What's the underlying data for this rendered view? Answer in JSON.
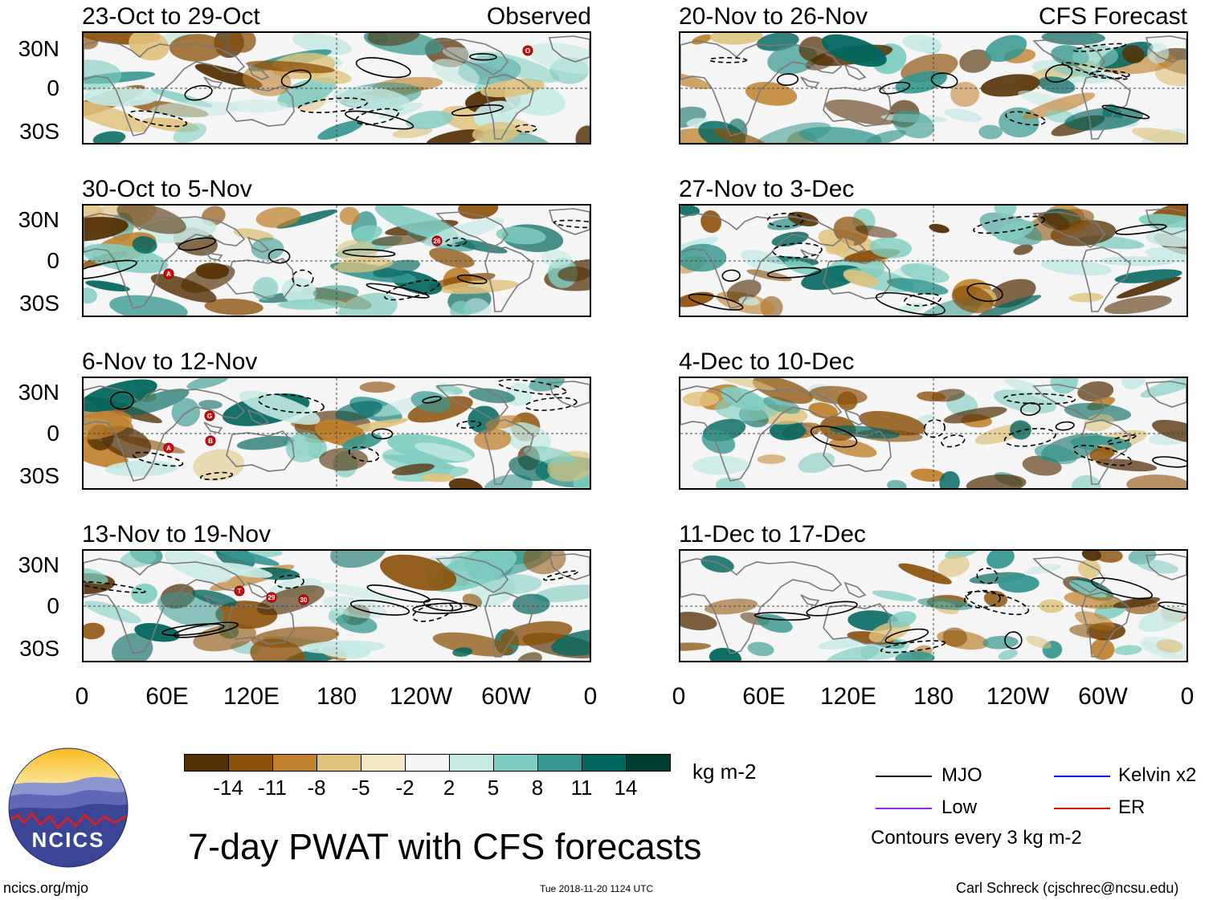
{
  "panels_left": [
    {
      "title": "23-Oct to 29-Oct",
      "tag": "Observed",
      "storms": [
        {
          "label": "O"
        }
      ]
    },
    {
      "title": "30-Oct to 5-Nov",
      "tag": "",
      "storms": [
        {
          "label": "A"
        },
        {
          "label": "26"
        }
      ]
    },
    {
      "title": "6-Nov to 12-Nov",
      "tag": "",
      "storms": [
        {
          "label": "G"
        },
        {
          "label": "A"
        },
        {
          "label": "B"
        }
      ]
    },
    {
      "title": "13-Nov to 19-Nov",
      "tag": "",
      "storms": [
        {
          "label": "T"
        },
        {
          "label": "29"
        },
        {
          "label": "30"
        }
      ]
    }
  ],
  "panels_right": [
    {
      "title": "20-Nov to 26-Nov",
      "tag": "CFS Forecast"
    },
    {
      "title": "27-Nov to 3-Dec",
      "tag": ""
    },
    {
      "title": "4-Dec to 10-Dec",
      "tag": ""
    },
    {
      "title": "11-Dec to 17-Dec",
      "tag": ""
    }
  ],
  "lat_labels": [
    "30N",
    "0",
    "30S"
  ],
  "lon_labels": [
    "0",
    "60E",
    "120E",
    "180",
    "120W",
    "60W",
    "0"
  ],
  "colorbar": {
    "colors": [
      "#543005",
      "#8c510a",
      "#bf812d",
      "#dfc27d",
      "#f6e8c3",
      "#f5f5f5",
      "#c7eae5",
      "#80cdc1",
      "#35978f",
      "#01665e",
      "#003c30"
    ],
    "labels": [
      "-14",
      "-11",
      "-8",
      "-5",
      "-2",
      "2",
      "5",
      "8",
      "11",
      "14"
    ],
    "units": "kg m-2"
  },
  "legend": {
    "items": [
      {
        "label": "MJO",
        "color": "#000000"
      },
      {
        "label": "Kelvin x2",
        "color": "#0000ff"
      },
      {
        "label": "Low",
        "color": "#a020f0"
      },
      {
        "label": "ER",
        "color": "#e00000"
      }
    ],
    "note": "Contours every 3 kg m-2"
  },
  "main_title": "7-day PWAT with CFS forecasts",
  "logo_text": "NCICS",
  "footer": {
    "left": "ncics.org/mjo",
    "center": "Tue 2018-11-20 1124 UTC",
    "right": "Carl Schreck (cjschrec@ncsu.edu)"
  }
}
